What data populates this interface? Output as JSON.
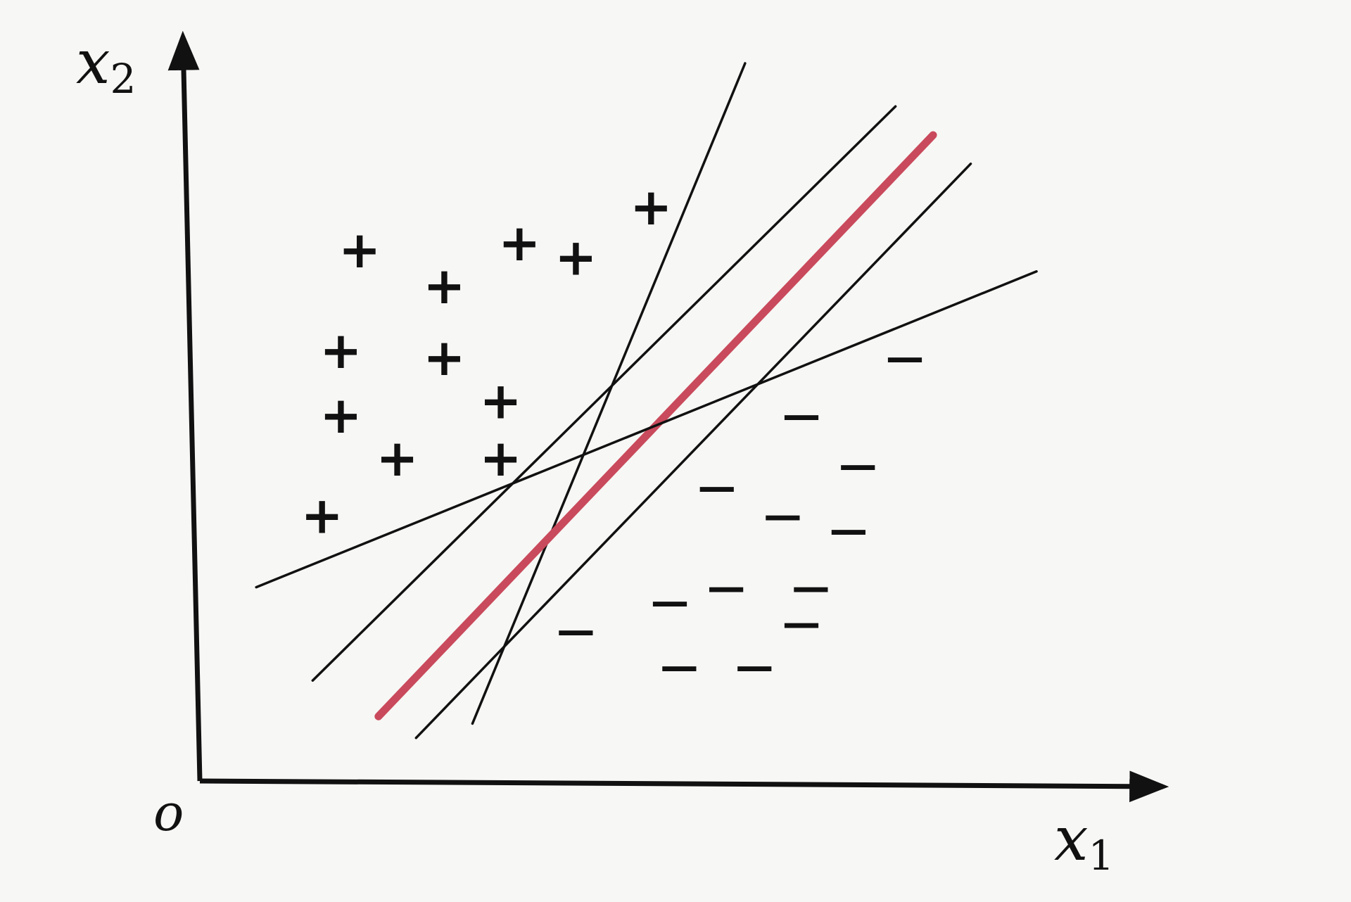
{
  "axes": {
    "x_label": "x",
    "x_subscript": "1",
    "y_label": "x",
    "y_subscript": "2",
    "origin_label": "o",
    "x_range": [
      0,
      10
    ],
    "y_range": [
      0,
      10
    ]
  },
  "colors": {
    "ink": "#111111",
    "optimal_hyperplane": "#c94a5c",
    "background": "#f7f7f5"
  },
  "positive_symbol": "+",
  "negative_symbol": "—",
  "positive_points": [
    [
      1.7,
      7.4
    ],
    [
      2.6,
      6.9
    ],
    [
      3.4,
      7.5
    ],
    [
      4.0,
      7.3
    ],
    [
      4.8,
      8.0
    ],
    [
      1.5,
      6.0
    ],
    [
      2.6,
      5.9
    ],
    [
      3.2,
      5.3
    ],
    [
      1.5,
      5.1
    ],
    [
      2.1,
      4.5
    ],
    [
      3.2,
      4.5
    ],
    [
      1.3,
      3.7
    ]
  ],
  "negative_points": [
    [
      7.5,
      5.9
    ],
    [
      6.4,
      5.1
    ],
    [
      7.0,
      4.4
    ],
    [
      5.5,
      4.1
    ],
    [
      6.2,
      3.7
    ],
    [
      6.9,
      3.5
    ],
    [
      5.6,
      2.7
    ],
    [
      6.5,
      2.7
    ],
    [
      5.0,
      2.5
    ],
    [
      6.4,
      2.2
    ],
    [
      4.0,
      2.1
    ],
    [
      5.1,
      1.6
    ],
    [
      5.9,
      1.6
    ]
  ],
  "separating_lines": [
    {
      "name": "steep",
      "from": [
        2.9,
        0.8
      ],
      "to": [
        5.8,
        10.0
      ],
      "optimal": false
    },
    {
      "name": "upper-parallel",
      "from": [
        1.2,
        1.4
      ],
      "to": [
        7.4,
        9.4
      ],
      "optimal": false
    },
    {
      "name": "optimal",
      "from": [
        1.9,
        0.9
      ],
      "to": [
        7.8,
        9.0
      ],
      "optimal": true
    },
    {
      "name": "lower-parallel",
      "from": [
        2.3,
        0.6
      ],
      "to": [
        8.2,
        8.6
      ],
      "optimal": false
    },
    {
      "name": "shallow",
      "from": [
        0.6,
        2.7
      ],
      "to": [
        8.9,
        7.1
      ],
      "optimal": false
    }
  ]
}
